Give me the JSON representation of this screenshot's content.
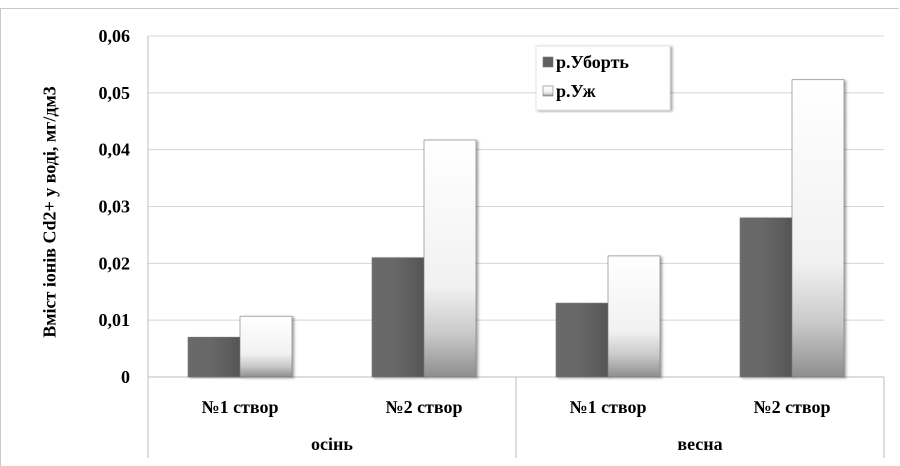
{
  "top_text": "",
  "chart_data": {
    "type": "bar",
    "title": "",
    "ylabel": "Вміст іонів Cd2+ у воді, мг/дм3",
    "xlabel": "",
    "ylim": [
      0,
      0.06
    ],
    "yticks": [
      "0",
      "0,01",
      "0,02",
      "0,03",
      "0,04",
      "0,05",
      "0,06"
    ],
    "categories": [
      "№1 створ",
      "№2 створ",
      "№1 створ",
      "№2 створ"
    ],
    "groups": [
      {
        "label": "осінь",
        "span": [
          0,
          1
        ]
      },
      {
        "label": "весна",
        "span": [
          2,
          3
        ]
      }
    ],
    "series": [
      {
        "name": "р.Уборть",
        "values": [
          0.007,
          0.021,
          0.013,
          0.028
        ],
        "color": "#5f5f5f"
      },
      {
        "name": "р.Уж",
        "values": [
          0.0107,
          0.0417,
          0.0213,
          0.0523
        ],
        "color": "#f2f2f2"
      }
    ],
    "grid": true,
    "legend_position": "top-right"
  }
}
